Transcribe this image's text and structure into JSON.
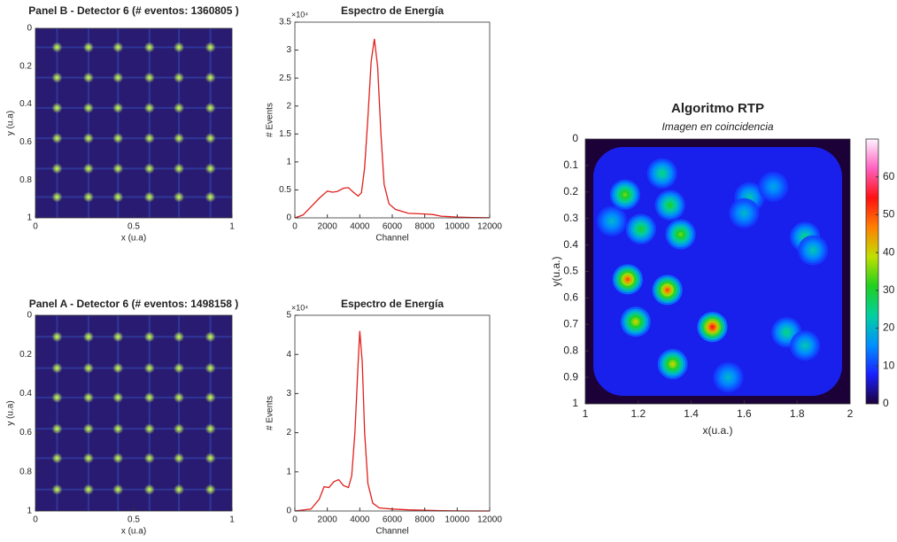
{
  "chart_data": [
    {
      "type": "image",
      "title": "Panel B - Detector 6 (# eventos: 1360805 )",
      "xlabel": "x (u.a)",
      "ylabel": "y (u.a)",
      "xlim": [
        0,
        1
      ],
      "ylim": [
        0,
        1
      ],
      "y_direction": "reverse",
      "xticks": [
        0,
        0.5,
        1
      ],
      "yticks": [
        0,
        0.2,
        0.4,
        0.6,
        0.8,
        1
      ],
      "spot_x": [
        0.11,
        0.27,
        0.42,
        0.58,
        0.73,
        0.89
      ],
      "spot_y": [
        0.1,
        0.26,
        0.42,
        0.58,
        0.74,
        0.89
      ],
      "background_color": "#2a1b72",
      "spot_color": "#c8ff50"
    },
    {
      "type": "line",
      "title": "Espectro de Energía",
      "xlabel": "Channel",
      "ylabel": "# Events",
      "y_multiplier": "×10⁴",
      "color": "#e0201c",
      "x": [
        0,
        500,
        1000,
        1500,
        2000,
        2300,
        2600,
        3000,
        3300,
        3600,
        3900,
        4100,
        4300,
        4500,
        4700,
        4900,
        5100,
        5300,
        5500,
        5800,
        6200,
        7000,
        8000,
        8500,
        9000,
        10000,
        11000,
        12000
      ],
      "values": [
        0,
        500,
        2000,
        3500,
        4800,
        4600,
        4700,
        5300,
        5400,
        4600,
        3900,
        4500,
        9000,
        18000,
        28000,
        32000,
        27000,
        15000,
        6000,
        2500,
        1500,
        800,
        700,
        600,
        300,
        150,
        60,
        20
      ],
      "xlim": [
        0,
        12000
      ],
      "ylim": [
        0,
        35000
      ],
      "xticks": [
        0,
        2000,
        4000,
        6000,
        8000,
        10000,
        12000
      ],
      "yticks": [
        0,
        {
          "value": 5000,
          "label": "0.5"
        },
        {
          "value": 10000,
          "label": "1"
        },
        {
          "value": 15000,
          "label": "1.5"
        },
        {
          "value": 20000,
          "label": "2"
        },
        {
          "value": 25000,
          "label": "2.5"
        },
        {
          "value": 30000,
          "label": "3"
        },
        {
          "value": 35000,
          "label": "3.5"
        }
      ]
    },
    {
      "type": "image",
      "title": "Panel A - Detector 6 (# eventos: 1498158 )",
      "xlabel": "x (u.a)",
      "ylabel": "y (u.a)",
      "xlim": [
        0,
        1
      ],
      "ylim": [
        0,
        1
      ],
      "y_direction": "reverse",
      "xticks": [
        0,
        0.5,
        1
      ],
      "yticks": [
        0,
        0.2,
        0.4,
        0.6,
        0.8,
        1
      ],
      "spot_x": [
        0.11,
        0.27,
        0.42,
        0.58,
        0.73,
        0.89
      ],
      "spot_y": [
        0.11,
        0.27,
        0.42,
        0.58,
        0.73,
        0.89
      ],
      "background_color": "#2a1b72",
      "spot_color": "#c8ff50"
    },
    {
      "type": "line",
      "title": "Espectro de Energía",
      "xlabel": "Channel",
      "ylabel": "# Events",
      "y_multiplier": "×10⁴",
      "color": "#e0201c",
      "x": [
        0,
        1000,
        1500,
        1800,
        2100,
        2400,
        2700,
        3000,
        3300,
        3500,
        3700,
        3900,
        4000,
        4150,
        4300,
        4500,
        4800,
        5200,
        6000,
        7000,
        8000,
        9000,
        10000,
        12000
      ],
      "values": [
        0,
        500,
        3000,
        6200,
        6000,
        7500,
        8000,
        6500,
        6000,
        9000,
        20000,
        38000,
        46000,
        38000,
        20000,
        7000,
        2000,
        800,
        500,
        300,
        200,
        80,
        30,
        10
      ],
      "xlim": [
        0,
        12000
      ],
      "ylim": [
        0,
        50000
      ],
      "xticks": [
        0,
        2000,
        4000,
        6000,
        8000,
        10000,
        12000
      ],
      "yticks": [
        0,
        {
          "value": 10000,
          "label": "1"
        },
        {
          "value": 20000,
          "label": "2"
        },
        {
          "value": 30000,
          "label": "3"
        },
        {
          "value": 40000,
          "label": "4"
        },
        {
          "value": 50000,
          "label": "5"
        }
      ]
    },
    {
      "type": "heatmap",
      "title": "Algoritmo RTP",
      "subtitle": "Imagen en coincidencia",
      "xlabel": "x(u.a.)",
      "ylabel": "y(u.a.)",
      "xlim": [
        1,
        2
      ],
      "ylim": [
        0,
        1
      ],
      "y_direction": "reverse",
      "xticks": [
        1,
        1.2,
        1.4,
        1.6,
        1.8,
        2
      ],
      "yticks": [
        0,
        0.1,
        0.2,
        0.3,
        0.4,
        0.5,
        0.6,
        0.7,
        0.8,
        0.9,
        1
      ],
      "clim": [
        0,
        70
      ],
      "cticks": [
        0,
        10,
        20,
        30,
        40,
        50,
        60
      ],
      "colormap": [
        "#1c0038",
        "#1a20ff",
        "#0090ff",
        "#00d0a0",
        "#20d020",
        "#c0e000",
        "#ff8000",
        "#ff1010",
        "#ff60c0",
        "#fff4ff"
      ],
      "background_level": 8,
      "x": [
        1.15,
        1.29,
        1.32,
        1.21,
        1.36,
        1.1,
        1.16,
        1.31,
        1.19,
        1.48,
        1.33,
        1.54,
        1.62,
        1.71,
        1.83,
        1.76,
        1.83,
        1.6,
        1.86
      ],
      "y": [
        0.21,
        0.13,
        0.25,
        0.34,
        0.36,
        0.31,
        0.53,
        0.57,
        0.69,
        0.71,
        0.85,
        0.9,
        0.22,
        0.18,
        0.37,
        0.73,
        0.78,
        0.28,
        0.42
      ],
      "values": [
        35,
        25,
        30,
        30,
        35,
        20,
        50,
        50,
        40,
        55,
        40,
        20,
        22,
        18,
        25,
        25,
        22,
        20,
        22
      ]
    }
  ]
}
